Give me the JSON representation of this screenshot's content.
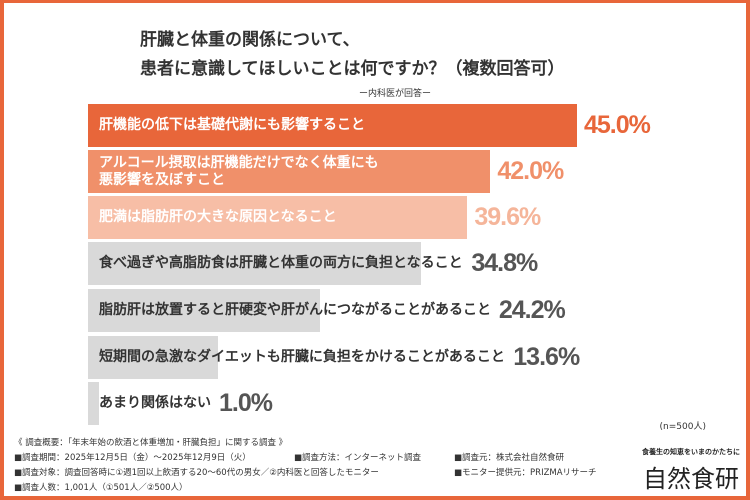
{
  "title_line1": "肝臓と体重の関係について、",
  "title_line2": "患者に意識してほしいことは何ですか？（複数回答可）",
  "subtitle": "ー内科医が回答ー",
  "sample_size": "(n=500人)",
  "chart_data": {
    "type": "bar",
    "orientation": "horizontal",
    "title": "肝臓と体重の関係について、患者に意識してほしいことは何ですか？（複数回答可）",
    "categories": [
      "肝機能の低下は基礎代謝にも影響すること",
      "アルコール摂取は肝機能だけでなく体重にも悪影響を及ぼすこと",
      "肥満は脂肪肝の大きな原因となること",
      "食べ過ぎや高脂肪食は肝臓と体重の両方に負担となること",
      "脂肪肝は放置すると肝硬変や肝がんにつながることがあること",
      "短期間の急激なダイエットも肝臓に負担をかけることがあること",
      "あまり関係はない"
    ],
    "label_lines": [
      [
        "肝機能の低下は基礎代謝にも影響すること"
      ],
      [
        "アルコール摂取は肝機能だけでなく体重にも",
        "悪影響を及ぼすこと"
      ],
      [
        "肥満は脂肪肝の大きな原因となること"
      ],
      [
        "食べ過ぎや高脂肪食は肝臓と体重の両方に負担となること"
      ],
      [
        "脂肪肝は放置すると肝硬変や肝がんにつながることがあること"
      ],
      [
        "短期間の急激なダイエットも肝臓に負担をかけることがあること"
      ],
      [
        "あまり関係はない"
      ]
    ],
    "values": [
      45.0,
      42.0,
      39.6,
      34.8,
      24.2,
      13.6,
      1.0
    ],
    "value_labels": [
      "45.0%",
      "42.0%",
      "39.6%",
      "34.8%",
      "24.2%",
      "13.6%",
      "1.0%"
    ],
    "bar_colors": [
      "#e8663a",
      "#f0906a",
      "#f7bea6",
      "#d9d9d9",
      "#d9d9d9",
      "#d9d9d9",
      "#d9d9d9"
    ],
    "label_colors": [
      "#ffffff",
      "#ffffff",
      "#ffffff",
      "#333333",
      "#333333",
      "#333333",
      "#333333"
    ],
    "value_colors": [
      "#e8663a",
      "#f0906a",
      "#f5b59a",
      "#555555",
      "#555555",
      "#555555",
      "#555555"
    ],
    "xlim": [
      0,
      45
    ],
    "grid": false
  },
  "notes": {
    "heading": "《 調査概要：「年末年始の飲酒と体重増加・肝臓負担」に関する調査 》",
    "period": "■調査期間：2025年12月5日（金）～2025年12月9日（火）",
    "method": "■調査方法：インターネット調査",
    "source": "■調査元：株式会社自然食研",
    "target": "■調査対象：調査回答時に①週1回以上飲酒する20～60代の男女／②内科医と回答したモニター",
    "provider": "■モニター提供元：PRIZMAリサーチ",
    "count": "■調査人数：1,001人（①501人／②500人）"
  },
  "brand": {
    "tagline": "食養生の知恵をいまのかたちに",
    "name": "自然食研"
  },
  "colors": {
    "accent": "#e8663a"
  }
}
